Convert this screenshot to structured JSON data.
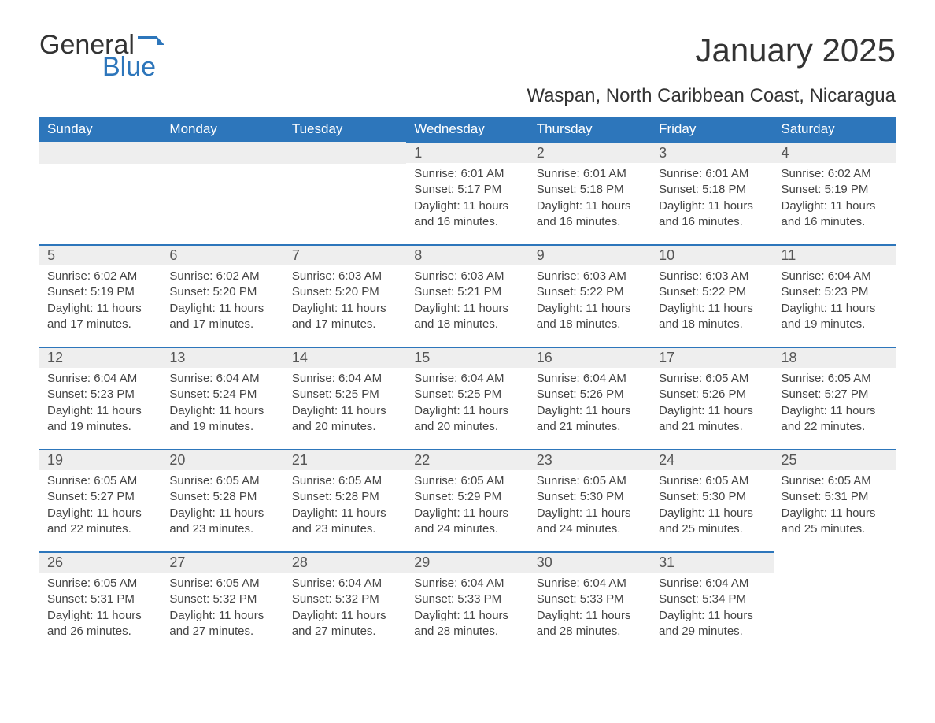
{
  "brand": {
    "word1": "General",
    "word2": "Blue"
  },
  "title": "January 2025",
  "subtitle": "Waspan, North Caribbean Coast, Nicaragua",
  "colors": {
    "header_bg": "#2d76bb",
    "header_text": "#ffffff",
    "daynum_bg": "#eeeeee",
    "daynum_border": "#2d76bb",
    "body_text": "#444444",
    "title_text": "#333333"
  },
  "weekdays": [
    "Sunday",
    "Monday",
    "Tuesday",
    "Wednesday",
    "Thursday",
    "Friday",
    "Saturday"
  ],
  "weeks": [
    [
      {
        "empty": true
      },
      {
        "empty": true
      },
      {
        "empty": true
      },
      {
        "day": "1",
        "sunrise": "Sunrise: 6:01 AM",
        "sunset": "Sunset: 5:17 PM",
        "daylight1": "Daylight: 11 hours",
        "daylight2": "and 16 minutes."
      },
      {
        "day": "2",
        "sunrise": "Sunrise: 6:01 AM",
        "sunset": "Sunset: 5:18 PM",
        "daylight1": "Daylight: 11 hours",
        "daylight2": "and 16 minutes."
      },
      {
        "day": "3",
        "sunrise": "Sunrise: 6:01 AM",
        "sunset": "Sunset: 5:18 PM",
        "daylight1": "Daylight: 11 hours",
        "daylight2": "and 16 minutes."
      },
      {
        "day": "4",
        "sunrise": "Sunrise: 6:02 AM",
        "sunset": "Sunset: 5:19 PM",
        "daylight1": "Daylight: 11 hours",
        "daylight2": "and 16 minutes."
      }
    ],
    [
      {
        "day": "5",
        "sunrise": "Sunrise: 6:02 AM",
        "sunset": "Sunset: 5:19 PM",
        "daylight1": "Daylight: 11 hours",
        "daylight2": "and 17 minutes."
      },
      {
        "day": "6",
        "sunrise": "Sunrise: 6:02 AM",
        "sunset": "Sunset: 5:20 PM",
        "daylight1": "Daylight: 11 hours",
        "daylight2": "and 17 minutes."
      },
      {
        "day": "7",
        "sunrise": "Sunrise: 6:03 AM",
        "sunset": "Sunset: 5:20 PM",
        "daylight1": "Daylight: 11 hours",
        "daylight2": "and 17 minutes."
      },
      {
        "day": "8",
        "sunrise": "Sunrise: 6:03 AM",
        "sunset": "Sunset: 5:21 PM",
        "daylight1": "Daylight: 11 hours",
        "daylight2": "and 18 minutes."
      },
      {
        "day": "9",
        "sunrise": "Sunrise: 6:03 AM",
        "sunset": "Sunset: 5:22 PM",
        "daylight1": "Daylight: 11 hours",
        "daylight2": "and 18 minutes."
      },
      {
        "day": "10",
        "sunrise": "Sunrise: 6:03 AM",
        "sunset": "Sunset: 5:22 PM",
        "daylight1": "Daylight: 11 hours",
        "daylight2": "and 18 minutes."
      },
      {
        "day": "11",
        "sunrise": "Sunrise: 6:04 AM",
        "sunset": "Sunset: 5:23 PM",
        "daylight1": "Daylight: 11 hours",
        "daylight2": "and 19 minutes."
      }
    ],
    [
      {
        "day": "12",
        "sunrise": "Sunrise: 6:04 AM",
        "sunset": "Sunset: 5:23 PM",
        "daylight1": "Daylight: 11 hours",
        "daylight2": "and 19 minutes."
      },
      {
        "day": "13",
        "sunrise": "Sunrise: 6:04 AM",
        "sunset": "Sunset: 5:24 PM",
        "daylight1": "Daylight: 11 hours",
        "daylight2": "and 19 minutes."
      },
      {
        "day": "14",
        "sunrise": "Sunrise: 6:04 AM",
        "sunset": "Sunset: 5:25 PM",
        "daylight1": "Daylight: 11 hours",
        "daylight2": "and 20 minutes."
      },
      {
        "day": "15",
        "sunrise": "Sunrise: 6:04 AM",
        "sunset": "Sunset: 5:25 PM",
        "daylight1": "Daylight: 11 hours",
        "daylight2": "and 20 minutes."
      },
      {
        "day": "16",
        "sunrise": "Sunrise: 6:04 AM",
        "sunset": "Sunset: 5:26 PM",
        "daylight1": "Daylight: 11 hours",
        "daylight2": "and 21 minutes."
      },
      {
        "day": "17",
        "sunrise": "Sunrise: 6:05 AM",
        "sunset": "Sunset: 5:26 PM",
        "daylight1": "Daylight: 11 hours",
        "daylight2": "and 21 minutes."
      },
      {
        "day": "18",
        "sunrise": "Sunrise: 6:05 AM",
        "sunset": "Sunset: 5:27 PM",
        "daylight1": "Daylight: 11 hours",
        "daylight2": "and 22 minutes."
      }
    ],
    [
      {
        "day": "19",
        "sunrise": "Sunrise: 6:05 AM",
        "sunset": "Sunset: 5:27 PM",
        "daylight1": "Daylight: 11 hours",
        "daylight2": "and 22 minutes."
      },
      {
        "day": "20",
        "sunrise": "Sunrise: 6:05 AM",
        "sunset": "Sunset: 5:28 PM",
        "daylight1": "Daylight: 11 hours",
        "daylight2": "and 23 minutes."
      },
      {
        "day": "21",
        "sunrise": "Sunrise: 6:05 AM",
        "sunset": "Sunset: 5:28 PM",
        "daylight1": "Daylight: 11 hours",
        "daylight2": "and 23 minutes."
      },
      {
        "day": "22",
        "sunrise": "Sunrise: 6:05 AM",
        "sunset": "Sunset: 5:29 PM",
        "daylight1": "Daylight: 11 hours",
        "daylight2": "and 24 minutes."
      },
      {
        "day": "23",
        "sunrise": "Sunrise: 6:05 AM",
        "sunset": "Sunset: 5:30 PM",
        "daylight1": "Daylight: 11 hours",
        "daylight2": "and 24 minutes."
      },
      {
        "day": "24",
        "sunrise": "Sunrise: 6:05 AM",
        "sunset": "Sunset: 5:30 PM",
        "daylight1": "Daylight: 11 hours",
        "daylight2": "and 25 minutes."
      },
      {
        "day": "25",
        "sunrise": "Sunrise: 6:05 AM",
        "sunset": "Sunset: 5:31 PM",
        "daylight1": "Daylight: 11 hours",
        "daylight2": "and 25 minutes."
      }
    ],
    [
      {
        "day": "26",
        "sunrise": "Sunrise: 6:05 AM",
        "sunset": "Sunset: 5:31 PM",
        "daylight1": "Daylight: 11 hours",
        "daylight2": "and 26 minutes."
      },
      {
        "day": "27",
        "sunrise": "Sunrise: 6:05 AM",
        "sunset": "Sunset: 5:32 PM",
        "daylight1": "Daylight: 11 hours",
        "daylight2": "and 27 minutes."
      },
      {
        "day": "28",
        "sunrise": "Sunrise: 6:04 AM",
        "sunset": "Sunset: 5:32 PM",
        "daylight1": "Daylight: 11 hours",
        "daylight2": "and 27 minutes."
      },
      {
        "day": "29",
        "sunrise": "Sunrise: 6:04 AM",
        "sunset": "Sunset: 5:33 PM",
        "daylight1": "Daylight: 11 hours",
        "daylight2": "and 28 minutes."
      },
      {
        "day": "30",
        "sunrise": "Sunrise: 6:04 AM",
        "sunset": "Sunset: 5:33 PM",
        "daylight1": "Daylight: 11 hours",
        "daylight2": "and 28 minutes."
      },
      {
        "day": "31",
        "sunrise": "Sunrise: 6:04 AM",
        "sunset": "Sunset: 5:34 PM",
        "daylight1": "Daylight: 11 hours",
        "daylight2": "and 29 minutes."
      },
      {
        "empty": true
      }
    ]
  ]
}
